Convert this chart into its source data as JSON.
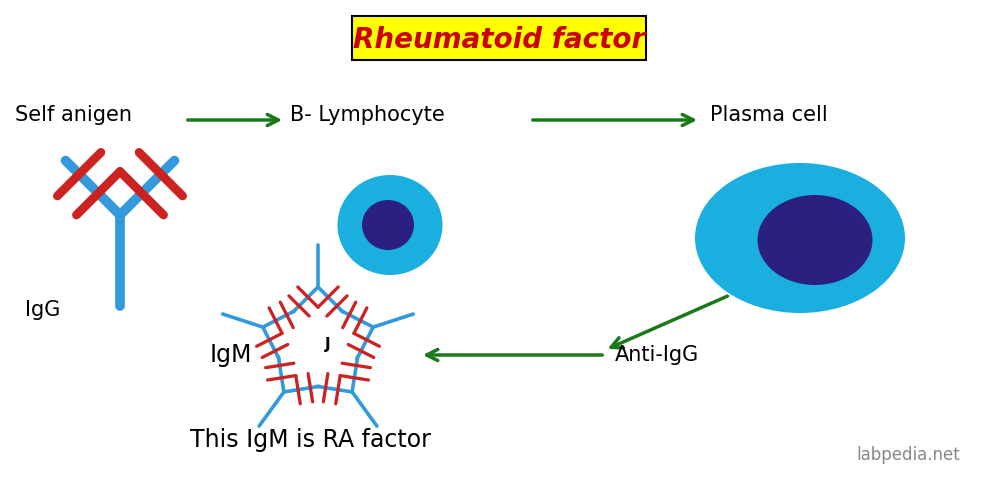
{
  "title": "Rheumatoid factor",
  "title_bg": "#FFFF00",
  "title_fontsize": 20,
  "bg_color": "#FFFFFF",
  "text_color": "#000000",
  "arrow_color": "#1A7A1A",
  "label_self_antigen": "Self anigen",
  "label_b_lymphocyte": "B- Lymphocyte",
  "label_plasma_cell": "Plasma cell",
  "label_anti_igg": "Anti-IgG",
  "label_igm": "IgM",
  "label_igg": "IgG",
  "label_this_igm": "This IgM is RA factor",
  "label_website": "labpedia.net",
  "cell_color_outer": "#1AAFDF",
  "cell_color_inner": "#2B2080",
  "ab_blue": "#3399DD",
  "ab_red": "#CC2222",
  "green": "#1A7A1A",
  "title_color": "#CC0000"
}
